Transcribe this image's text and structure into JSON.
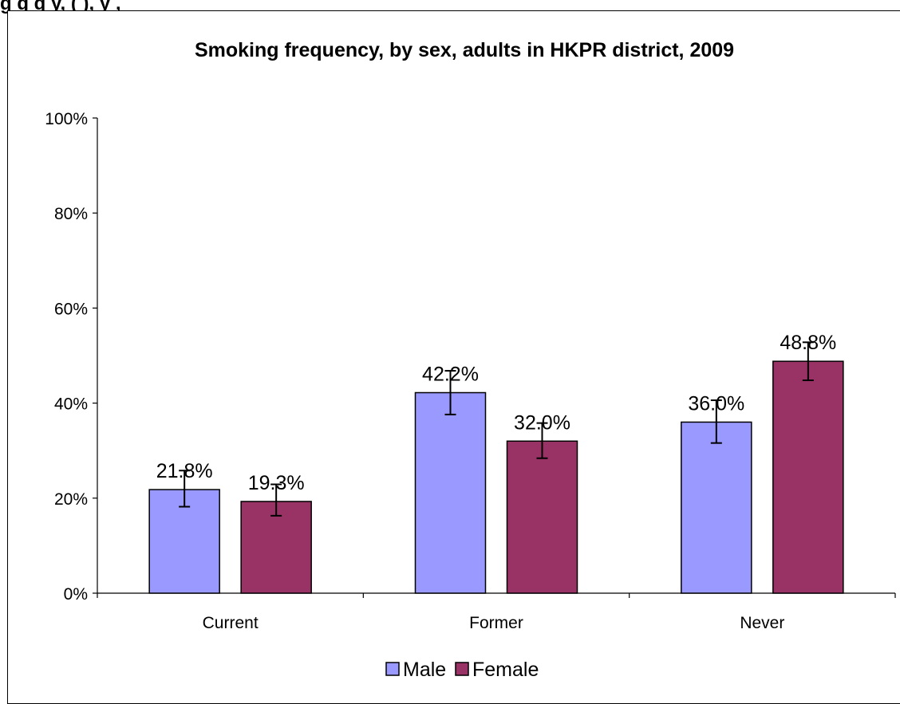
{
  "caption_fragment": "g                   g  q     y,         (   ),  y    ,",
  "chart_data": {
    "type": "bar",
    "title": "Smoking frequency, by sex, adults in HKPR district, 2009",
    "categories": [
      "Current",
      "Former",
      "Never"
    ],
    "series": [
      {
        "name": "Male",
        "color": "#9999ff",
        "values": [
          21.8,
          42.2,
          36.0
        ],
        "error_low": [
          18.2,
          37.6,
          31.6
        ],
        "error_high": [
          25.8,
          46.8,
          40.6
        ],
        "labels": [
          "21.8%",
          "42.2%",
          "36.0%"
        ]
      },
      {
        "name": "Female",
        "color": "#993366",
        "values": [
          19.3,
          32.0,
          48.8
        ],
        "error_low": [
          16.3,
          28.4,
          44.8
        ],
        "error_high": [
          22.9,
          35.8,
          52.8
        ],
        "labels": [
          "19.3%",
          "32.0%",
          "48.8%"
        ]
      }
    ],
    "ylim": [
      0,
      100
    ],
    "yticks": [
      0,
      20,
      40,
      60,
      80,
      100
    ],
    "ytick_labels": [
      "0%",
      "20%",
      "40%",
      "60%",
      "80%",
      "100%"
    ],
    "xlabel": "",
    "ylabel": "",
    "grid": false,
    "legend_position": "bottom"
  }
}
